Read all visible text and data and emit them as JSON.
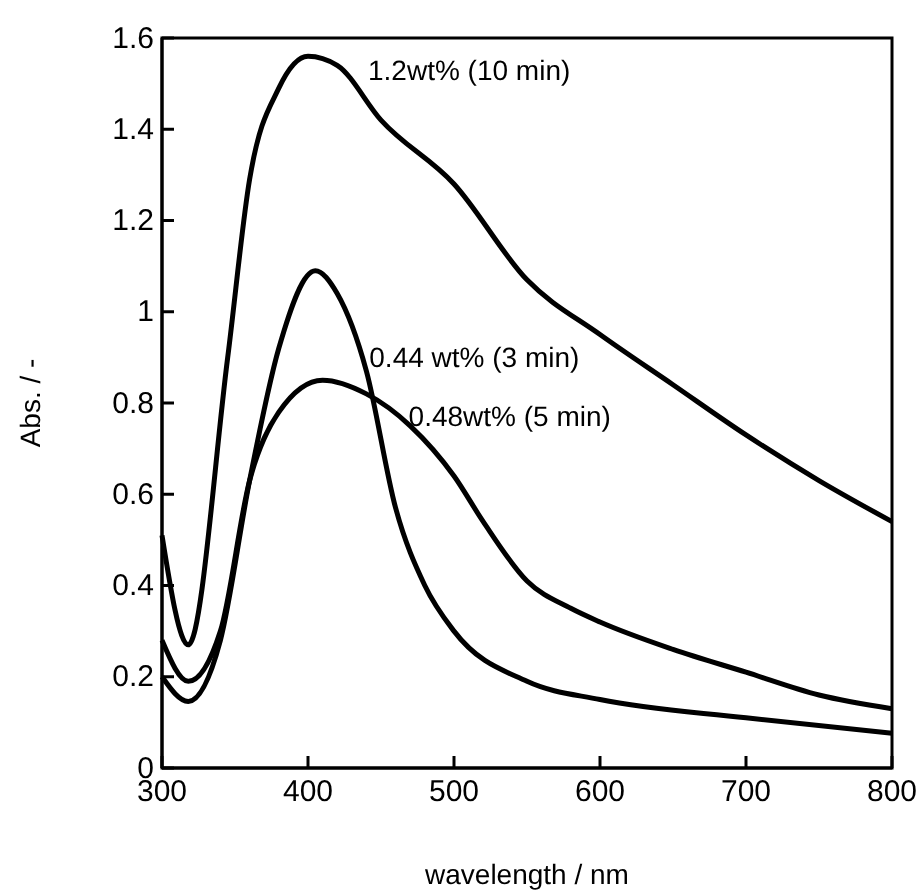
{
  "chart_data": {
    "type": "line",
    "xlabel": "wavelength / nm",
    "ylabel": "Abs. / -",
    "xlim": [
      300,
      800
    ],
    "ylim": [
      0,
      1.6
    ],
    "xticks": [
      300,
      400,
      500,
      600,
      700,
      800
    ],
    "yticks": [
      0,
      0.2,
      0.4,
      0.6,
      0.8,
      {
        "value": 1,
        "label": "1"
      },
      1.2,
      1.4,
      1.6
    ],
    "grid": false,
    "line_style": "solid",
    "marker": "none",
    "series": [
      {
        "name": "1.2wt% (10 min)",
        "color": "#000000",
        "x": [
          300,
          318,
          345,
          360,
          380,
          400,
          420,
          450,
          500,
          550,
          600,
          650,
          700,
          750,
          800
        ],
        "values": [
          0.51,
          0.27,
          0.9,
          1.29,
          1.49,
          1.56,
          1.54,
          1.42,
          1.28,
          1.07,
          0.95,
          0.84,
          0.73,
          0.63,
          0.54
        ]
      },
      {
        "name": "0.44 wt% (3 min)",
        "color": "#000000",
        "x": [
          300,
          318,
          340,
          360,
          380,
          405,
          420,
          440,
          460,
          480,
          500,
          550,
          600,
          700,
          800
        ],
        "values": [
          0.2,
          0.146,
          0.28,
          0.63,
          0.92,
          1.09,
          1.04,
          0.87,
          0.57,
          0.4,
          0.3,
          0.19,
          0.15,
          0.11,
          0.076
        ]
      },
      {
        "name": "0.48wt% (5 min)",
        "color": "#000000",
        "x": [
          300,
          318,
          340,
          360,
          380,
          410,
          440,
          470,
          500,
          520,
          550,
          580,
          600,
          650,
          700,
          750,
          800
        ],
        "values": [
          0.28,
          0.19,
          0.3,
          0.63,
          0.78,
          0.85,
          0.82,
          0.75,
          0.64,
          0.54,
          0.41,
          0.35,
          0.32,
          0.26,
          0.21,
          0.16,
          0.13
        ]
      }
    ]
  }
}
